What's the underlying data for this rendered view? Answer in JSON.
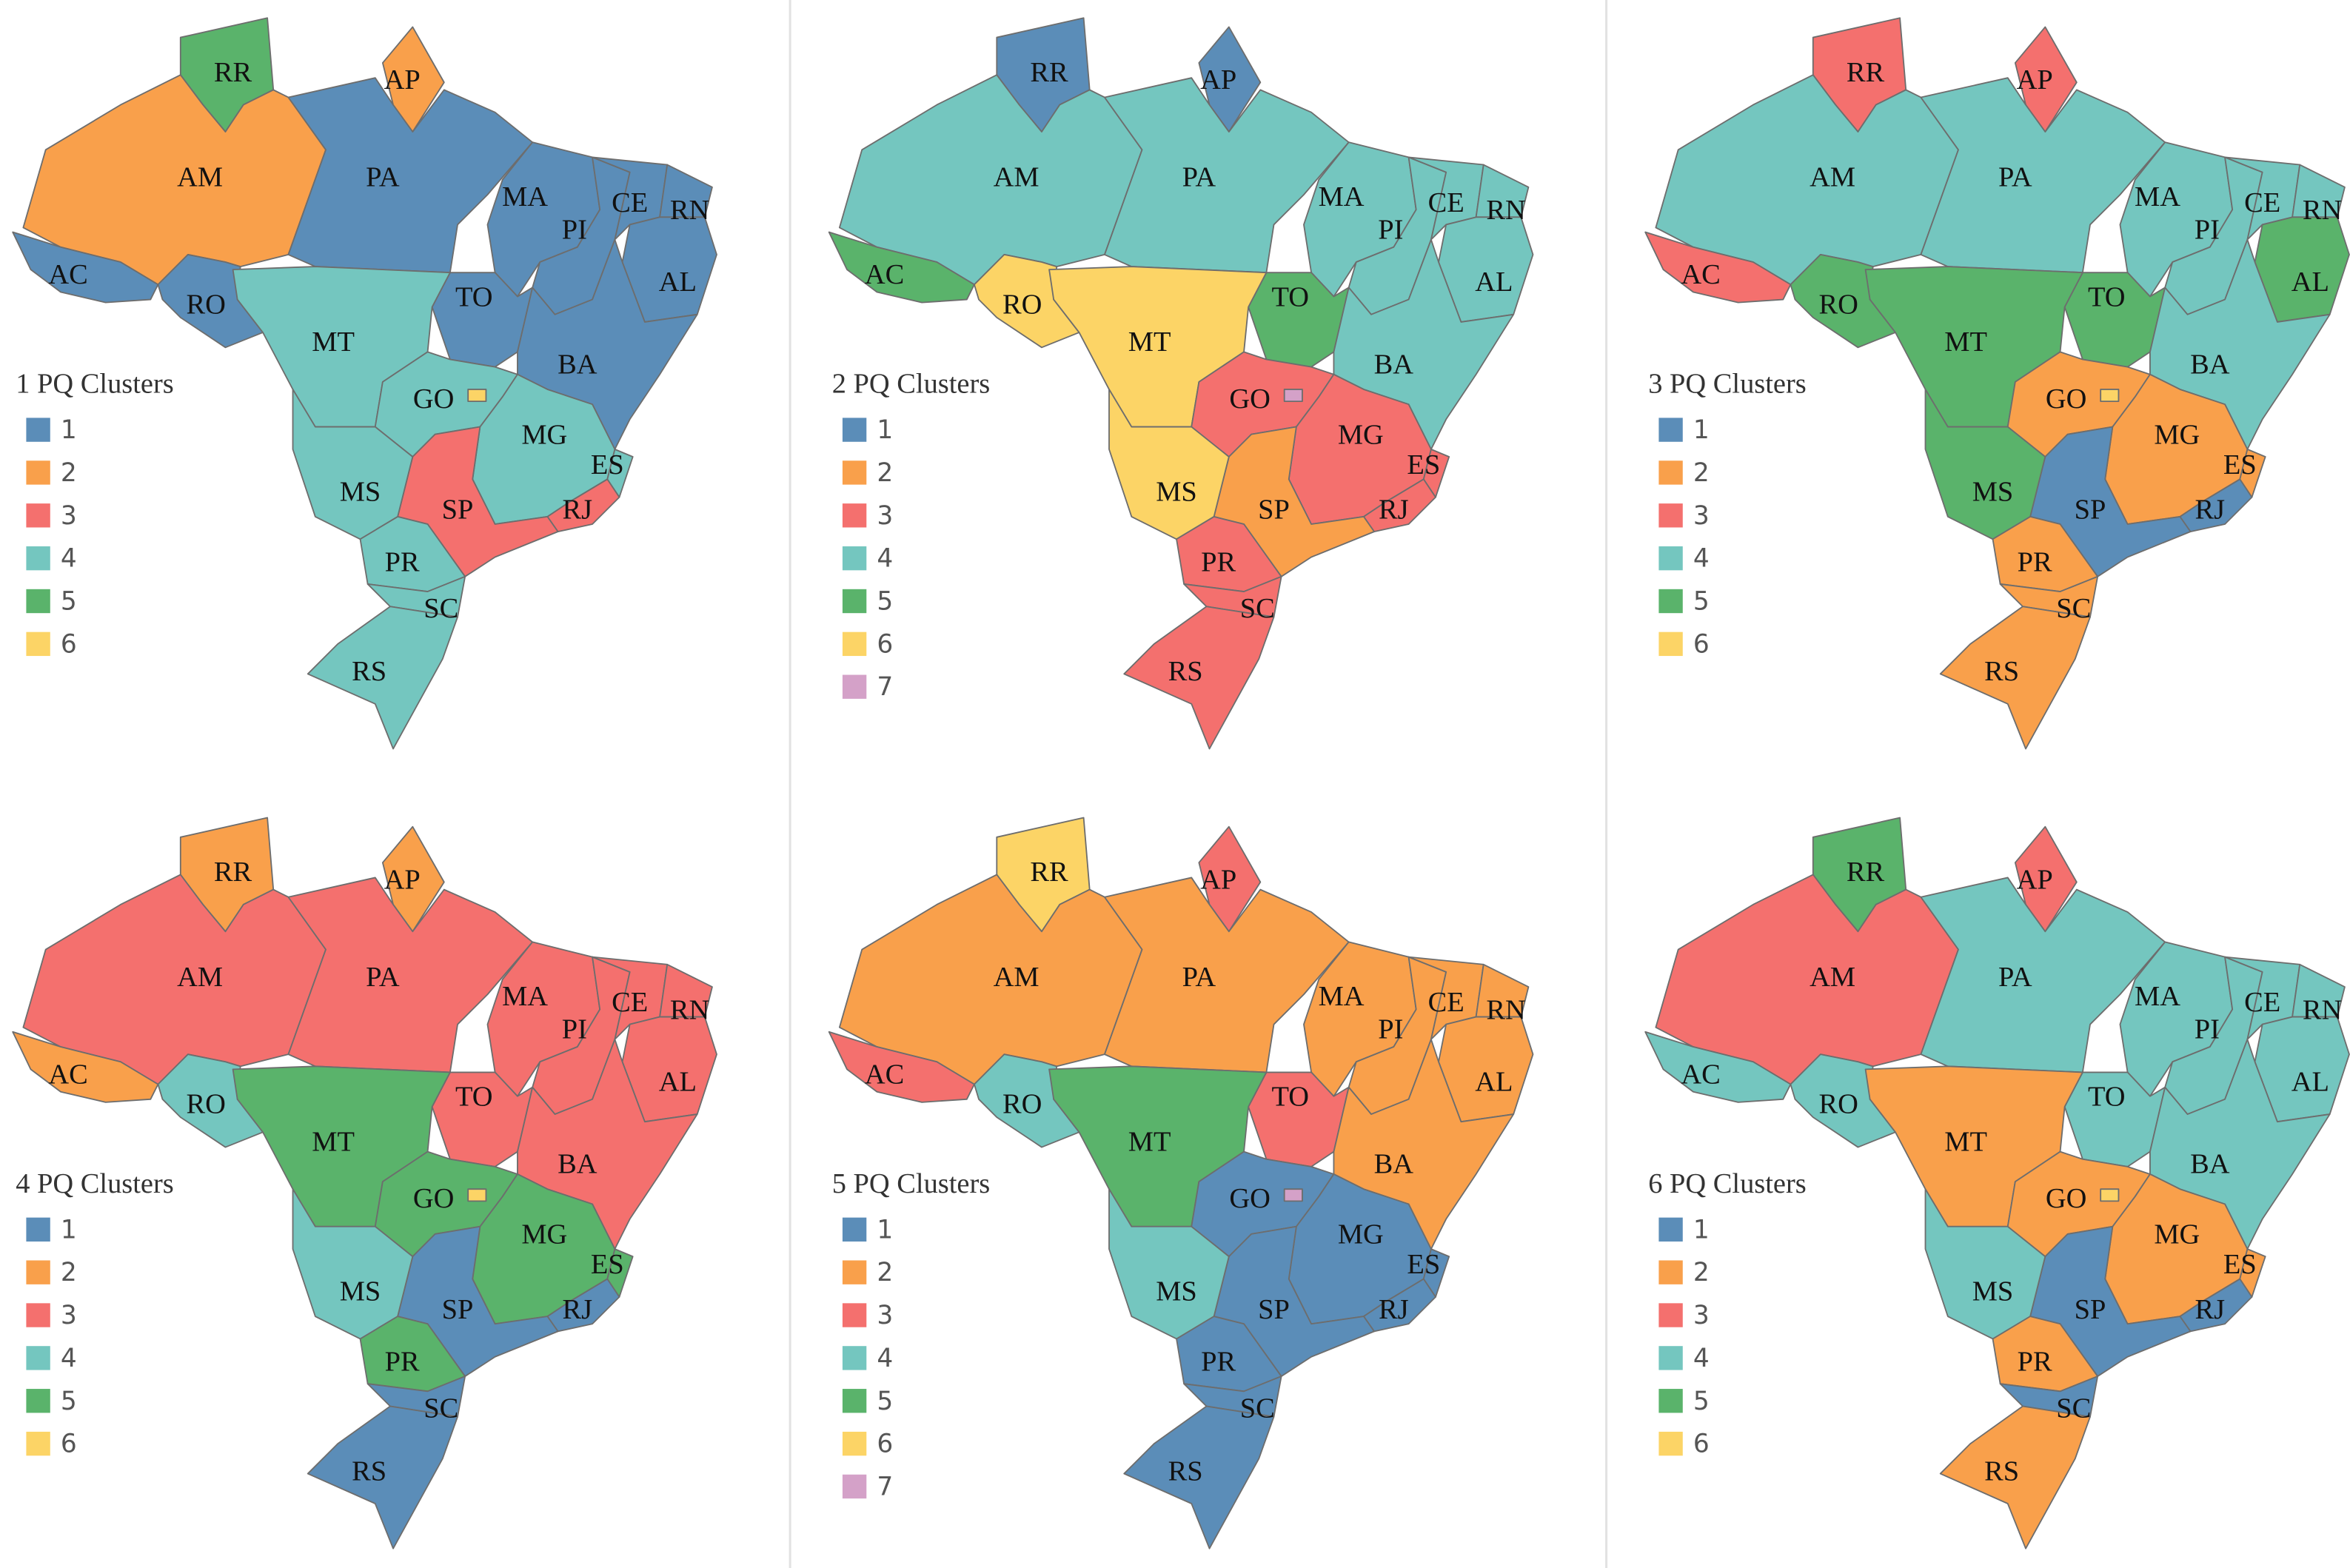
{
  "panels": [
    {
      "title": "1 PQ Clusters",
      "legend": [
        {
          "label": "1",
          "color": "#5b8db8"
        },
        {
          "label": "2",
          "color": "#f9a04b"
        },
        {
          "label": "3",
          "color": "#f4706e"
        },
        {
          "label": "4",
          "color": "#74c6bf"
        },
        {
          "label": "5",
          "color": "#5ab36b"
        },
        {
          "label": "6",
          "color": "#fcd466"
        }
      ],
      "states": [
        {
          "label": "RR",
          "cluster": 5
        },
        {
          "label": "AP",
          "cluster": 2
        },
        {
          "label": "AM",
          "cluster": 2
        },
        {
          "label": "AC",
          "cluster": 1
        },
        {
          "label": "RO",
          "cluster": 1
        },
        {
          "label": "PA",
          "cluster": 1
        },
        {
          "label": "MA",
          "cluster": 1
        },
        {
          "label": "PI",
          "cluster": 1
        },
        {
          "label": "CE",
          "cluster": 1
        },
        {
          "label": "RN",
          "cluster": 1
        },
        {
          "label": "AL",
          "cluster": 1
        },
        {
          "label": "TO",
          "cluster": 1
        },
        {
          "label": "BA",
          "cluster": 1
        },
        {
          "label": "MT",
          "cluster": 4
        },
        {
          "label": "GO",
          "cluster": 4
        },
        {
          "label": "MG",
          "cluster": 4
        },
        {
          "label": "ES",
          "cluster": 4
        },
        {
          "label": "RJ",
          "cluster": 3
        },
        {
          "label": "SP",
          "cluster": 3
        },
        {
          "label": "MS",
          "cluster": 4
        },
        {
          "label": "PR",
          "cluster": 4
        },
        {
          "label": "SC",
          "cluster": 4
        },
        {
          "label": "RS",
          "cluster": 4
        },
        {
          "label": null,
          "cluster": 6
        }
      ]
    },
    {
      "title": "2 PQ Clusters",
      "legend": [
        {
          "label": "1",
          "color": "#5b8db8"
        },
        {
          "label": "2",
          "color": "#f9a04b"
        },
        {
          "label": "3",
          "color": "#f4706e"
        },
        {
          "label": "4",
          "color": "#74c6bf"
        },
        {
          "label": "5",
          "color": "#5ab36b"
        },
        {
          "label": "6",
          "color": "#fcd466"
        },
        {
          "label": "7",
          "color": "#d4a1c8"
        }
      ],
      "states": [
        {
          "label": "RR",
          "cluster": 1
        },
        {
          "label": "AP",
          "cluster": 1
        },
        {
          "label": "AM",
          "cluster": 4
        },
        {
          "label": "AC",
          "cluster": 5
        },
        {
          "label": "RO",
          "cluster": 6
        },
        {
          "label": "PA",
          "cluster": 4
        },
        {
          "label": "MA",
          "cluster": 4
        },
        {
          "label": "PI",
          "cluster": 4
        },
        {
          "label": "CE",
          "cluster": 4
        },
        {
          "label": "RN",
          "cluster": 4
        },
        {
          "label": "AL",
          "cluster": 4
        },
        {
          "label": "TO",
          "cluster": 5
        },
        {
          "label": "BA",
          "cluster": 4
        },
        {
          "label": "MT",
          "cluster": 6
        },
        {
          "label": "GO",
          "cluster": 3
        },
        {
          "label": "MG",
          "cluster": 3
        },
        {
          "label": "ES",
          "cluster": 3
        },
        {
          "label": "RJ",
          "cluster": 3
        },
        {
          "label": "SP",
          "cluster": 2
        },
        {
          "label": "MS",
          "cluster": 6
        },
        {
          "label": "PR",
          "cluster": 3
        },
        {
          "label": "SC",
          "cluster": 3
        },
        {
          "label": "RS",
          "cluster": 3
        },
        {
          "label": null,
          "cluster": 7
        }
      ]
    },
    {
      "title": "3 PQ Clusters",
      "legend": [
        {
          "label": "1",
          "color": "#5b8db8"
        },
        {
          "label": "2",
          "color": "#f9a04b"
        },
        {
          "label": "3",
          "color": "#f4706e"
        },
        {
          "label": "4",
          "color": "#74c6bf"
        },
        {
          "label": "5",
          "color": "#5ab36b"
        },
        {
          "label": "6",
          "color": "#fcd466"
        }
      ],
      "states": [
        {
          "label": "RR",
          "cluster": 3
        },
        {
          "label": "AP",
          "cluster": 3
        },
        {
          "label": "AM",
          "cluster": 4
        },
        {
          "label": "AC",
          "cluster": 3
        },
        {
          "label": "RO",
          "cluster": 5
        },
        {
          "label": "PA",
          "cluster": 4
        },
        {
          "label": "MA",
          "cluster": 4
        },
        {
          "label": "PI",
          "cluster": 4
        },
        {
          "label": "CE",
          "cluster": 4
        },
        {
          "label": "RN",
          "cluster": 4
        },
        {
          "label": "AL",
          "cluster": 5
        },
        {
          "label": "TO",
          "cluster": 5
        },
        {
          "label": "BA",
          "cluster": 4
        },
        {
          "label": "MT",
          "cluster": 5
        },
        {
          "label": "GO",
          "cluster": 2
        },
        {
          "label": "MG",
          "cluster": 2
        },
        {
          "label": "ES",
          "cluster": 2
        },
        {
          "label": "RJ",
          "cluster": 1
        },
        {
          "label": "SP",
          "cluster": 1
        },
        {
          "label": "MS",
          "cluster": 5
        },
        {
          "label": "PR",
          "cluster": 2
        },
        {
          "label": "SC",
          "cluster": 2
        },
        {
          "label": "RS",
          "cluster": 2
        },
        {
          "label": null,
          "cluster": 6
        }
      ]
    },
    {
      "title": "4 PQ Clusters",
      "legend": [
        {
          "label": "1",
          "color": "#5b8db8"
        },
        {
          "label": "2",
          "color": "#f9a04b"
        },
        {
          "label": "3",
          "color": "#f4706e"
        },
        {
          "label": "4",
          "color": "#74c6bf"
        },
        {
          "label": "5",
          "color": "#5ab36b"
        },
        {
          "label": "6",
          "color": "#fcd466"
        }
      ],
      "states": [
        {
          "label": "RR",
          "cluster": 2
        },
        {
          "label": "AP",
          "cluster": 2
        },
        {
          "label": "AM",
          "cluster": 3
        },
        {
          "label": "AC",
          "cluster": 2
        },
        {
          "label": "RO",
          "cluster": 4
        },
        {
          "label": "PA",
          "cluster": 3
        },
        {
          "label": "MA",
          "cluster": 3
        },
        {
          "label": "PI",
          "cluster": 3
        },
        {
          "label": "CE",
          "cluster": 3
        },
        {
          "label": "RN",
          "cluster": 3
        },
        {
          "label": "AL",
          "cluster": 3
        },
        {
          "label": "TO",
          "cluster": 3
        },
        {
          "label": "BA",
          "cluster": 3
        },
        {
          "label": "MT",
          "cluster": 5
        },
        {
          "label": "GO",
          "cluster": 5
        },
        {
          "label": "MG",
          "cluster": 5
        },
        {
          "label": "ES",
          "cluster": 5
        },
        {
          "label": "RJ",
          "cluster": 1
        },
        {
          "label": "SP",
          "cluster": 1
        },
        {
          "label": "MS",
          "cluster": 4
        },
        {
          "label": "PR",
          "cluster": 5
        },
        {
          "label": "SC",
          "cluster": 1
        },
        {
          "label": "RS",
          "cluster": 1
        },
        {
          "label": null,
          "cluster": 6
        }
      ]
    },
    {
      "title": "5 PQ Clusters",
      "legend": [
        {
          "label": "1",
          "color": "#5b8db8"
        },
        {
          "label": "2",
          "color": "#f9a04b"
        },
        {
          "label": "3",
          "color": "#f4706e"
        },
        {
          "label": "4",
          "color": "#74c6bf"
        },
        {
          "label": "5",
          "color": "#5ab36b"
        },
        {
          "label": "6",
          "color": "#fcd466"
        },
        {
          "label": "7",
          "color": "#d4a1c8"
        }
      ],
      "states": [
        {
          "label": "RR",
          "cluster": 6
        },
        {
          "label": "AP",
          "cluster": 3
        },
        {
          "label": "AM",
          "cluster": 2
        },
        {
          "label": "AC",
          "cluster": 3
        },
        {
          "label": "RO",
          "cluster": 4
        },
        {
          "label": "PA",
          "cluster": 2
        },
        {
          "label": "MA",
          "cluster": 2
        },
        {
          "label": "PI",
          "cluster": 2
        },
        {
          "label": "CE",
          "cluster": 2
        },
        {
          "label": "RN",
          "cluster": 2
        },
        {
          "label": "AL",
          "cluster": 2
        },
        {
          "label": "TO",
          "cluster": 3
        },
        {
          "label": "BA",
          "cluster": 2
        },
        {
          "label": "MT",
          "cluster": 5
        },
        {
          "label": "GO",
          "cluster": 1
        },
        {
          "label": "MG",
          "cluster": 1
        },
        {
          "label": "ES",
          "cluster": 1
        },
        {
          "label": "RJ",
          "cluster": 1
        },
        {
          "label": "SP",
          "cluster": 1
        },
        {
          "label": "MS",
          "cluster": 4
        },
        {
          "label": "PR",
          "cluster": 1
        },
        {
          "label": "SC",
          "cluster": 1
        },
        {
          "label": "RS",
          "cluster": 1
        },
        {
          "label": null,
          "cluster": 7
        }
      ]
    },
    {
      "title": "6 PQ Clusters",
      "legend": [
        {
          "label": "1",
          "color": "#5b8db8"
        },
        {
          "label": "2",
          "color": "#f9a04b"
        },
        {
          "label": "3",
          "color": "#f4706e"
        },
        {
          "label": "4",
          "color": "#74c6bf"
        },
        {
          "label": "5",
          "color": "#5ab36b"
        },
        {
          "label": "6",
          "color": "#fcd466"
        }
      ],
      "states": [
        {
          "label": "RR",
          "cluster": 5
        },
        {
          "label": "AP",
          "cluster": 3
        },
        {
          "label": "AM",
          "cluster": 3
        },
        {
          "label": "AC",
          "cluster": 4
        },
        {
          "label": "RO",
          "cluster": 4
        },
        {
          "label": "PA",
          "cluster": 4
        },
        {
          "label": "MA",
          "cluster": 4
        },
        {
          "label": "PI",
          "cluster": 4
        },
        {
          "label": "CE",
          "cluster": 4
        },
        {
          "label": "RN",
          "cluster": 4
        },
        {
          "label": "AL",
          "cluster": 4
        },
        {
          "label": "TO",
          "cluster": 4
        },
        {
          "label": "BA",
          "cluster": 4
        },
        {
          "label": "MT",
          "cluster": 2
        },
        {
          "label": "GO",
          "cluster": 2
        },
        {
          "label": "MG",
          "cluster": 2
        },
        {
          "label": "ES",
          "cluster": 2
        },
        {
          "label": "RJ",
          "cluster": 1
        },
        {
          "label": "SP",
          "cluster": 1
        },
        {
          "label": "MS",
          "cluster": 4
        },
        {
          "label": "PR",
          "cluster": 2
        },
        {
          "label": "SC",
          "cluster": 1
        },
        {
          "label": "RS",
          "cluster": 2
        },
        {
          "label": null,
          "cluster": 6
        }
      ]
    }
  ]
}
